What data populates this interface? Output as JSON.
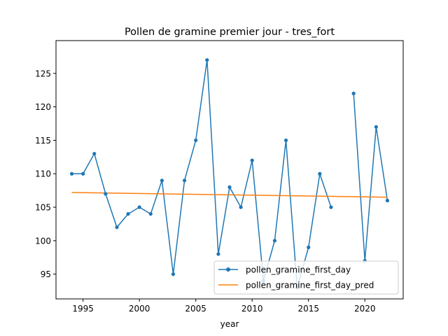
{
  "chart_data": {
    "type": "line",
    "title": "Pollen de gramine premier jour - tres_fort",
    "xlabel": "year",
    "ylabel": "",
    "xlim": [
      1992.6,
      2023.4
    ],
    "ylim": [
      91.3,
      129.9
    ],
    "x_ticks": [
      1995,
      2000,
      2005,
      2010,
      2015,
      2020
    ],
    "y_ticks": [
      95,
      100,
      105,
      110,
      115,
      120,
      125
    ],
    "grid": false,
    "legend_position": "lower-right",
    "series": [
      {
        "name": "pollen_gramine_first_day",
        "color": "#1f77b4",
        "marker": "circle",
        "x": [
          1994,
          1995,
          1996,
          1997,
          1998,
          1999,
          2000,
          2001,
          2002,
          2003,
          2004,
          2005,
          2006,
          2007,
          2008,
          2009,
          2010,
          2011,
          2012,
          2013,
          2014,
          2015,
          2016,
          2017,
          2018,
          2019,
          2020,
          2021,
          2022
        ],
        "y": [
          110,
          110,
          113,
          107,
          102,
          104,
          105,
          104,
          109,
          95,
          109,
          115,
          127,
          98,
          108,
          105,
          112,
          94,
          100,
          115,
          93,
          99,
          110,
          105,
          null,
          122,
          97,
          117,
          106
        ]
      },
      {
        "name": "pollen_gramine_first_day_pred",
        "color": "#ff7f0e",
        "marker": "none",
        "x": [
          1994,
          2022
        ],
        "y": [
          107.2,
          106.5
        ]
      }
    ]
  }
}
